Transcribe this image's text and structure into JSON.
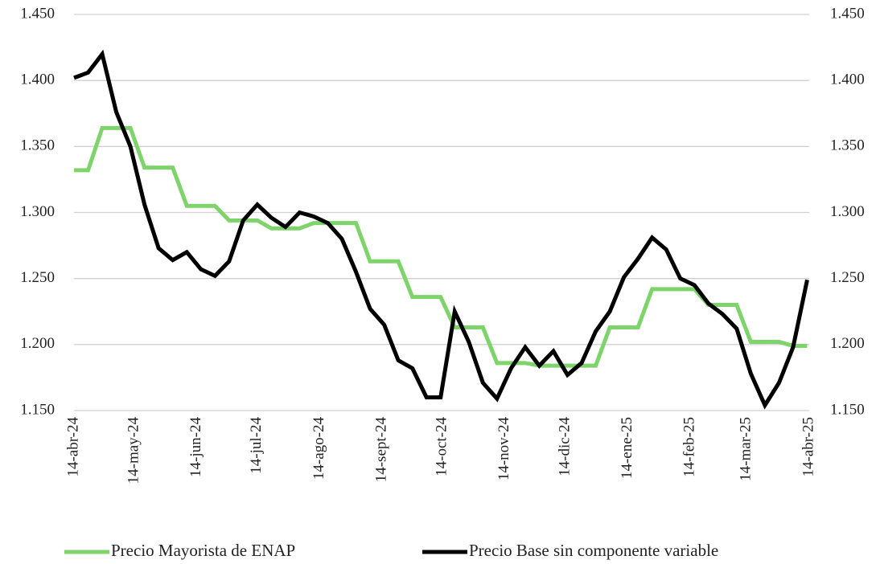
{
  "chart_data": {
    "type": "line",
    "x": [
      "2024-04-14",
      "2024-04-21",
      "2024-04-28",
      "2024-05-05",
      "2024-05-12",
      "2024-05-19",
      "2024-05-26",
      "2024-06-02",
      "2024-06-09",
      "2024-06-16",
      "2024-06-23",
      "2024-06-30",
      "2024-07-07",
      "2024-07-14",
      "2024-07-21",
      "2024-07-28",
      "2024-08-04",
      "2024-08-11",
      "2024-08-18",
      "2024-08-25",
      "2024-09-01",
      "2024-09-08",
      "2024-09-15",
      "2024-09-22",
      "2024-09-29",
      "2024-10-06",
      "2024-10-13",
      "2024-10-20",
      "2024-10-27",
      "2024-11-03",
      "2024-11-10",
      "2024-11-17",
      "2024-11-24",
      "2024-12-01",
      "2024-12-08",
      "2024-12-15",
      "2024-12-22",
      "2024-12-29",
      "2025-01-05",
      "2025-01-12",
      "2025-01-19",
      "2025-01-26",
      "2025-02-02",
      "2025-02-09",
      "2025-02-16",
      "2025-02-23",
      "2025-03-02",
      "2025-03-09",
      "2025-03-16",
      "2025-03-23",
      "2025-03-30",
      "2025-04-06",
      "2025-04-13"
    ],
    "series": [
      {
        "name": "Precio Mayorista de ENAP",
        "color": "#7ed46a",
        "values": [
          1.332,
          1.332,
          1.364,
          1.364,
          1.364,
          1.334,
          1.334,
          1.334,
          1.305,
          1.305,
          1.305,
          1.294,
          1.294,
          1.294,
          1.288,
          1.288,
          1.288,
          1.292,
          1.292,
          1.292,
          1.292,
          1.263,
          1.263,
          1.263,
          1.236,
          1.236,
          1.236,
          1.213,
          1.213,
          1.213,
          1.186,
          1.186,
          1.186,
          1.184,
          1.184,
          1.184,
          1.184,
          1.184,
          1.213,
          1.213,
          1.213,
          1.242,
          1.242,
          1.242,
          1.242,
          1.23,
          1.23,
          1.23,
          1.202,
          1.202,
          1.202,
          1.199,
          1.199
        ]
      },
      {
        "name": "Precio Base sin componente variable",
        "color": "#000000",
        "values": [
          1.402,
          1.406,
          1.42,
          1.376,
          1.35,
          1.306,
          1.273,
          1.264,
          1.27,
          1.257,
          1.252,
          1.263,
          1.294,
          1.306,
          1.296,
          1.289,
          1.3,
          1.297,
          1.292,
          1.28,
          1.255,
          1.227,
          1.215,
          1.188,
          1.182,
          1.16,
          1.16,
          1.225,
          1.202,
          1.171,
          1.159,
          1.182,
          1.198,
          1.184,
          1.195,
          1.177,
          1.186,
          1.21,
          1.225,
          1.251,
          1.265,
          1.281,
          1.272,
          1.25,
          1.245,
          1.231,
          1.223,
          1.212,
          1.178,
          1.154,
          1.171,
          1.198,
          1.249
        ]
      }
    ],
    "xlim": [
      "2024-04-14",
      "2025-04-14"
    ],
    "xticks": [
      {
        "value": "2024-04-14",
        "label": "14-abr-24"
      },
      {
        "value": "2024-05-14",
        "label": "14-may-24"
      },
      {
        "value": "2024-06-14",
        "label": "14-jun-24"
      },
      {
        "value": "2024-07-14",
        "label": "14-jul-24"
      },
      {
        "value": "2024-08-14",
        "label": "14-ago-24"
      },
      {
        "value": "2024-09-14",
        "label": "14-sept-24"
      },
      {
        "value": "2024-10-14",
        "label": "14-oct-24"
      },
      {
        "value": "2024-11-14",
        "label": "14-nov-24"
      },
      {
        "value": "2024-12-14",
        "label": "14-dic-24"
      },
      {
        "value": "2025-01-14",
        "label": "14-ene-25"
      },
      {
        "value": "2025-02-14",
        "label": "14-feb-25"
      },
      {
        "value": "2025-03-14",
        "label": "14-mar-25"
      },
      {
        "value": "2025-04-14",
        "label": "14-abr-25"
      }
    ],
    "ylim": [
      1.15,
      1.45
    ],
    "yticks": [
      {
        "value": 1.15,
        "label": "1.150"
      },
      {
        "value": 1.2,
        "label": "1.200"
      },
      {
        "value": 1.25,
        "label": "1.250"
      },
      {
        "value": 1.3,
        "label": "1.300"
      },
      {
        "value": 1.35,
        "label": "1.350"
      },
      {
        "value": 1.4,
        "label": "1.400"
      },
      {
        "value": 1.45,
        "label": "1.450"
      }
    ],
    "y2lim": [
      1.15,
      1.45
    ],
    "y2ticks": [
      {
        "value": 1.15,
        "label": "1.150"
      },
      {
        "value": 1.2,
        "label": "1.200"
      },
      {
        "value": 1.25,
        "label": "1.250"
      },
      {
        "value": 1.3,
        "label": "1.300"
      },
      {
        "value": 1.35,
        "label": "1.350"
      },
      {
        "value": 1.4,
        "label": "1.400"
      },
      {
        "value": 1.45,
        "label": "1.450"
      }
    ],
    "grid": true,
    "legend": "bottom"
  }
}
